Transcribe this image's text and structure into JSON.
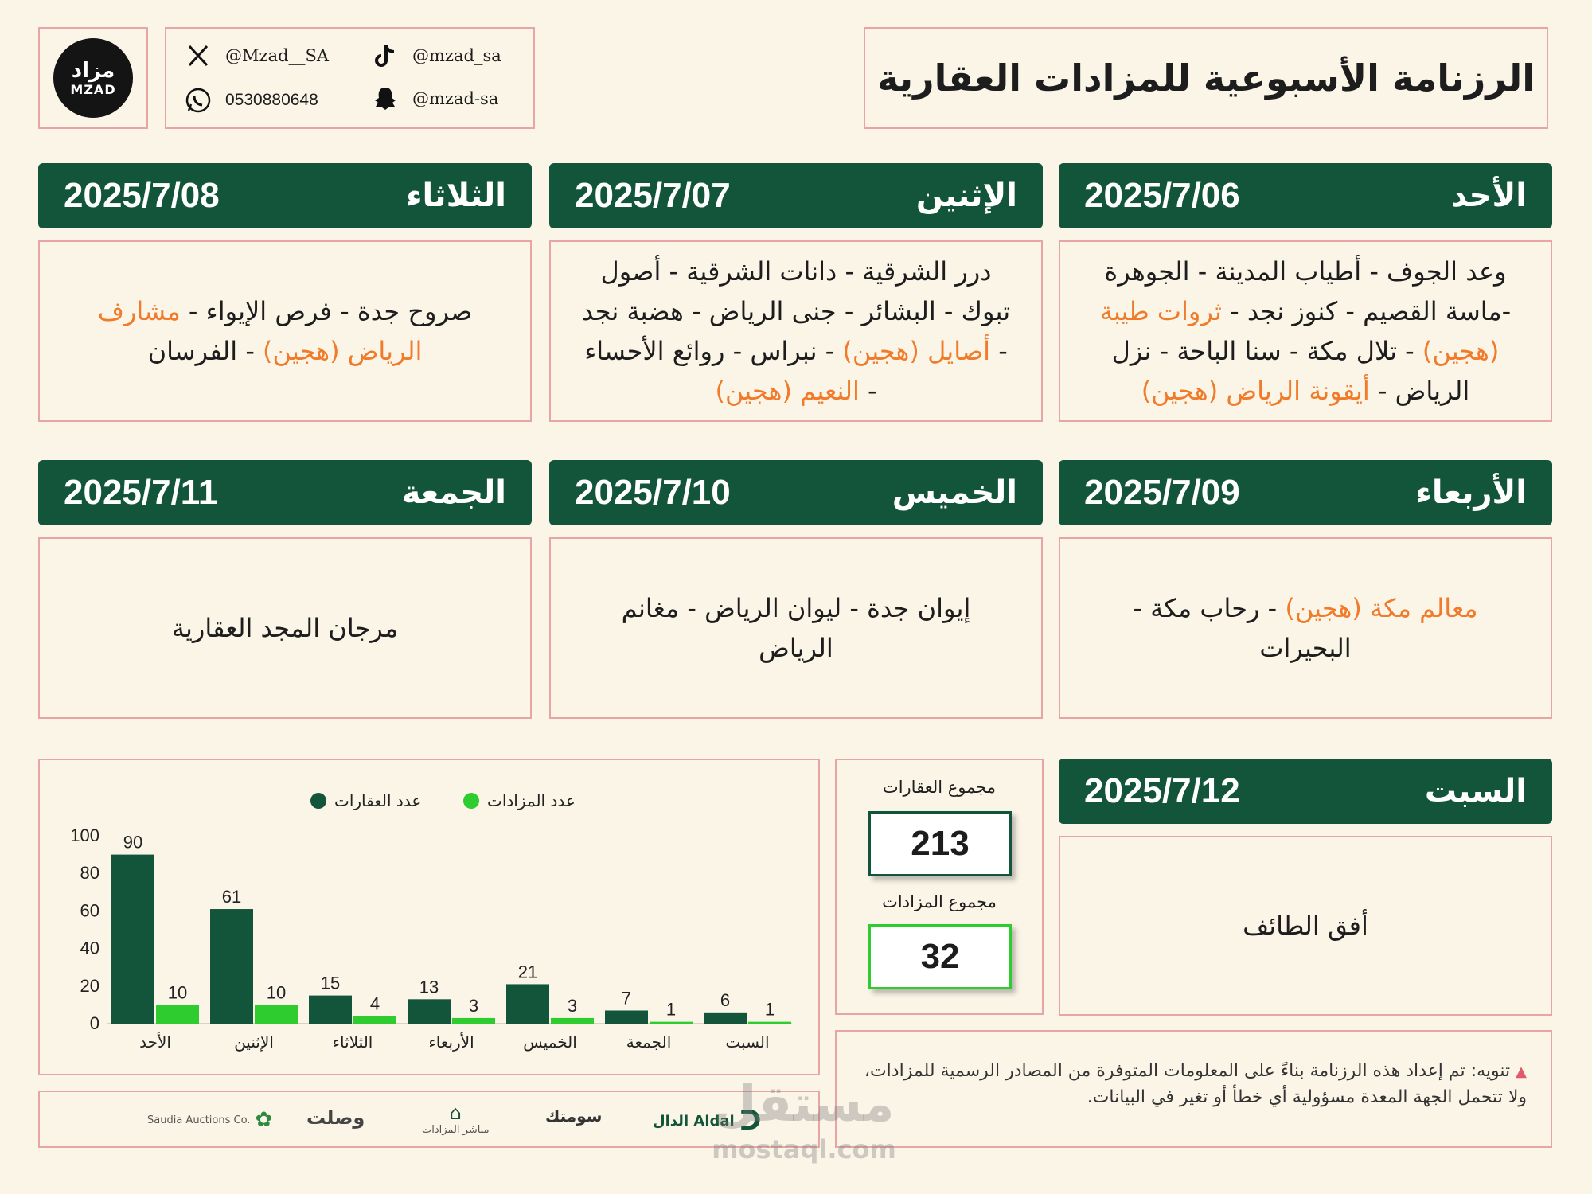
{
  "header": {
    "title": "الرزنامة الأسبوعية للمزادات العقارية",
    "logo_ar": "مزاد",
    "logo_en": "MZAD"
  },
  "social": {
    "x_handle": "@Mzad__SA",
    "tiktok_handle": "@mzad_sa",
    "whatsapp": "0530880648",
    "snapchat": "@mzad-sa"
  },
  "days": [
    {
      "day": "الأحد",
      "date": "2025/7/06",
      "lines": [
        [
          {
            "t": "وعد الجوف - أطياب المدينة - الجوهرة",
            "h": false
          }
        ],
        [
          {
            "t": "-ماسة القصيم - كنوز نجد - ",
            "h": false
          },
          {
            "t": "ثروات طيبة",
            "h": true
          }
        ],
        [
          {
            "t": "(هجين)",
            "h": true
          },
          {
            "t": " - تلال مكة - سنا الباحة - نزل",
            "h": false
          }
        ],
        [
          {
            "t": "الرياض - ",
            "h": false
          },
          {
            "t": "أيقونة الرياض (هجين)",
            "h": true
          }
        ]
      ]
    },
    {
      "day": "الإثنين",
      "date": "2025/7/07",
      "lines": [
        [
          {
            "t": "درر الشرقية - دانات الشرقية - أصول",
            "h": false
          }
        ],
        [
          {
            "t": "تبوك - البشائر - جنى الرياض - هضبة نجد",
            "h": false
          }
        ],
        [
          {
            "t": "- ",
            "h": false
          },
          {
            "t": "أصايل (هجين)",
            "h": true
          },
          {
            "t": " - نبراس - روائع الأحساء",
            "h": false
          }
        ],
        [
          {
            "t": "- ",
            "h": false
          },
          {
            "t": "النعيم (هجين)",
            "h": true
          }
        ]
      ]
    },
    {
      "day": "الثلاثاء",
      "date": "2025/7/08",
      "lines": [
        [
          {
            "t": "صروح جدة - فرص الإيواء - ",
            "h": false
          },
          {
            "t": "مشارف",
            "h": true
          }
        ],
        [
          {
            "t": "الرياض (هجين)",
            "h": true
          },
          {
            "t": " - الفرسان",
            "h": false
          }
        ]
      ]
    },
    {
      "day": "الأربعاء",
      "date": "2025/7/09",
      "lines": [
        [
          {
            "t": "معالم مكة (هجين)",
            "h": true
          },
          {
            "t": " - رحاب مكة -",
            "h": false
          }
        ],
        [
          {
            "t": "البحيرات",
            "h": false
          }
        ]
      ]
    },
    {
      "day": "الخميس",
      "date": "2025/7/10",
      "lines": [
        [
          {
            "t": "إيوان جدة - ليوان الرياض - مغانم",
            "h": false
          }
        ],
        [
          {
            "t": "الرياض",
            "h": false
          }
        ]
      ]
    },
    {
      "day": "الجمعة",
      "date": "2025/7/11",
      "lines": [
        [
          {
            "t": "مرجان المجد العقارية",
            "h": false
          }
        ]
      ]
    },
    {
      "day": "السبت",
      "date": "2025/7/12",
      "lines": [
        [
          {
            "t": "أفق الطائف",
            "h": false
          }
        ]
      ]
    }
  ],
  "totals": {
    "properties_label": "مجموع العقارات",
    "properties_value": "213",
    "auctions_label": "مجموع المزادات",
    "auctions_value": "32"
  },
  "notice": {
    "lead": "تنويه:",
    "text": "تم إعداد هذه الرزنامة بناءً على المعلومات المتوفرة من المصادر الرسمية للمزادات، ولا تتحمل الجهة المعدة مسؤولية أي خطأ أو تغير في البيانات."
  },
  "sponsors": [
    "Saudia Auctions Co.",
    "وصلت",
    "مباشر المزادات",
    "سومتك",
    "الدال Aldal"
  ],
  "watermark": {
    "ar": "مستقل",
    "en": "mostaql.com"
  },
  "chart_data": {
    "type": "bar",
    "categories": [
      "الأحد",
      "الإثنين",
      "الثلاثاء",
      "الأربعاء",
      "الخميس",
      "الجمعة",
      "السبت"
    ],
    "series": [
      {
        "name": "عدد العقارات",
        "values": [
          90,
          61,
          15,
          13,
          21,
          7,
          6
        ],
        "color": "#12553a"
      },
      {
        "name": "عدد المزادات",
        "values": [
          10,
          10,
          4,
          3,
          3,
          1,
          1
        ],
        "color": "#2ecc2e"
      }
    ],
    "yticks": [
      "0",
      "20",
      "40",
      "60",
      "80",
      "100"
    ],
    "ylim": [
      0,
      100
    ],
    "grid": false,
    "legend": "top-center"
  }
}
